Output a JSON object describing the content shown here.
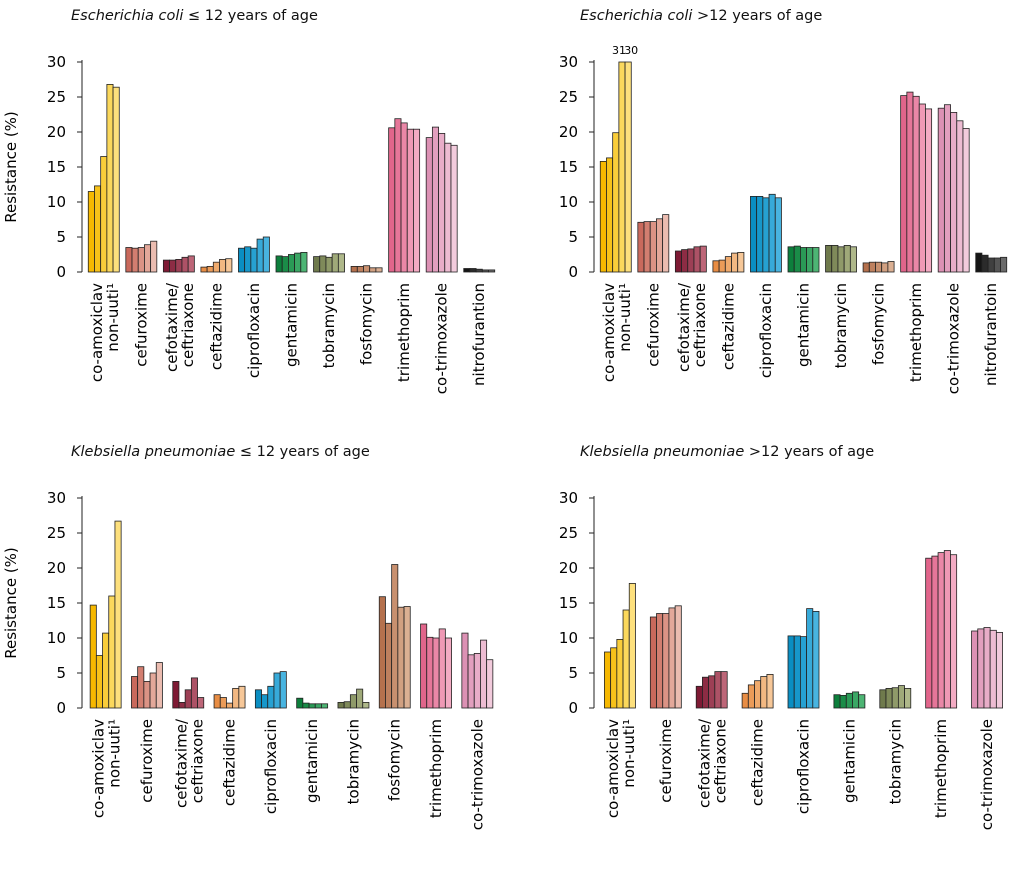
{
  "colors": {
    "co-amoxiclav": [
      "#f6b800",
      "#f7c21a",
      "#f9cd3a",
      "#fbd85c",
      "#fde07d"
    ],
    "cefuroxime": [
      "#c9695c",
      "#d27e70",
      "#db9385",
      "#e3a89a",
      "#ebbcb0"
    ],
    "cefotaxime/ceftriaxone": [
      "#7e1a34",
      "#8d2c44",
      "#9d3f55",
      "#ad5266",
      "#bd6678"
    ],
    "ceftazidime": [
      "#e88d44",
      "#eb9b58",
      "#efaa6d",
      "#f2b882",
      "#f6c798"
    ],
    "ciprofloxacin": [
      "#0a8ec2",
      "#1797ca",
      "#26a1d2",
      "#37aad9",
      "#48b4e0"
    ],
    "gentamicin": [
      "#0d7f3c",
      "#1a8c48",
      "#2a9a56",
      "#3ba765",
      "#4db574"
    ],
    "tobramycin": [
      "#6f7a4c",
      "#7f8a5a",
      "#8f9a69",
      "#9fa979",
      "#afb88a"
    ],
    "fosfomycin": [
      "#b5714d",
      "#be805e",
      "#c8906f",
      "#d1a081",
      "#dbb093"
    ],
    "trimethoprim": [
      "#e1658b",
      "#e67699",
      "#ea87a7",
      "#ef99b5",
      "#f3abc3"
    ],
    "co-trimoxazole": [
      "#dc91b4",
      "#e29fbe",
      "#e8adc8",
      "#edbcd2",
      "#f2cbdc"
    ],
    "nitrofurantoin": [
      "#151515",
      "#2b2b2b",
      "#404040",
      "#555555",
      "#6a6a6a"
    ]
  },
  "charts": [
    {
      "organism": "Escherichia coli",
      "age": " ≤ 12 years of age",
      "show_ylabel": true,
      "ylabel": "Resistance (%)",
      "ticks": [
        "30",
        "25",
        "20",
        "15",
        "10",
        "5",
        "0"
      ],
      "categories": [
        "co-amoxiclav non-uuti¹",
        "cefuroxime",
        "cefotaxime/ ceftriaxone",
        "ceftazidime",
        "ciprofloxacin",
        "gentamicin",
        "tobramycin",
        "fosfomycin",
        "trimethoprim",
        "co-trimoxazole",
        "nitrofurantion"
      ],
      "value_labels": [
        "",
        "",
        "",
        "",
        ""
      ]
    },
    {
      "organism": "Escherichia coli",
      "age": " >12 years of age",
      "show_ylabel": false,
      "ylabel": "",
      "ticks": [
        "30",
        "25",
        "20",
        "15",
        "10",
        "5",
        "0"
      ],
      "categories": [
        "co-amoxiclav non-uuti¹",
        "cefuroxime",
        "cefotaxime/ ceftriaxone",
        "ceftazidime",
        "ciprofloxacin",
        "gentamicin",
        "tobramycin",
        "fosfomycin",
        "trimethoprim",
        "co-trimoxazole",
        "nitrofurantoin"
      ],
      "value_labels": [
        "",
        "",
        "",
        "31",
        "30"
      ]
    },
    {
      "organism": "Klebsiella pneumoniae",
      "age": " ≤ 12 years of age",
      "show_ylabel": true,
      "ylabel": "Resistance (%)",
      "ticks": [
        "30",
        "25",
        "20",
        "15",
        "10",
        "5",
        "0"
      ],
      "categories": [
        "co-amoxiclav non-uuti¹",
        "cefuroxime",
        "cefotaxime/ ceftriaxone",
        "ceftazidime",
        "ciprofloxacin",
        "gentamicin",
        "tobramycin",
        "fosfomycin",
        "trimethoprim",
        "co-trimoxazole"
      ],
      "value_labels": [
        "",
        "",
        "",
        "",
        ""
      ]
    },
    {
      "organism": "Klebsiella pneumoniae",
      "age": " >12 years of age",
      "show_ylabel": false,
      "ylabel": "",
      "ticks": [
        "30",
        "25",
        "20",
        "15",
        "10",
        "5",
        "0"
      ],
      "categories": [
        "co-amoxiclav non-uuti¹",
        "cefuroxime",
        "cefotaxime/ ceftriaxone",
        "ceftazidime",
        "ciprofloxacin",
        "gentamicin",
        "tobramycin",
        "trimethoprim",
        "co-trimoxazole"
      ],
      "value_labels": [
        "",
        "",
        "",
        "",
        ""
      ]
    }
  ],
  "chart_data": [
    {
      "type": "bar",
      "title": "Escherichia coli ≤ 12 years of age",
      "ylabel": "Resistance (%)",
      "ylim": [
        0,
        30
      ],
      "categories": [
        "co-amoxiclav non-uuti¹",
        "cefuroxime",
        "cefotaxime/ ceftriaxone",
        "ceftazidime",
        "ciprofloxacin",
        "gentamicin",
        "tobramycin",
        "fosfomycin",
        "trimethoprim",
        "co-trimoxazole",
        "nitrofurantion"
      ],
      "series_per_category": 5,
      "values": [
        [
          11.5,
          12.3,
          16.5,
          26.8,
          26.4
        ],
        [
          3.5,
          3.4,
          3.5,
          3.9,
          4.4
        ],
        [
          1.7,
          1.7,
          1.8,
          2.1,
          2.3
        ],
        [
          0.7,
          0.8,
          1.4,
          1.8,
          1.9
        ],
        [
          3.4,
          3.6,
          3.4,
          4.7,
          5.0
        ],
        [
          2.3,
          2.2,
          2.5,
          2.7,
          2.8
        ],
        [
          2.2,
          2.3,
          2.1,
          2.6,
          2.6
        ],
        [
          0.8,
          0.8,
          0.9,
          0.6,
          0.6
        ],
        [
          20.6,
          21.9,
          21.3,
          20.4,
          20.4
        ],
        [
          19.2,
          20.7,
          19.8,
          18.4,
          18.1
        ],
        [
          0.5,
          0.5,
          0.4,
          0.3,
          0.3
        ]
      ]
    },
    {
      "type": "bar",
      "title": "Escherichia coli >12 years of age",
      "ylabel": "Resistance (%)",
      "ylim": [
        0,
        30
      ],
      "categories": [
        "co-amoxiclav non-uuti¹",
        "cefuroxime",
        "cefotaxime/ ceftriaxone",
        "ceftazidime",
        "ciprofloxacin",
        "gentamicin",
        "tobramycin",
        "fosfomycin",
        "trimethoprim",
        "co-trimoxazole",
        "nitrofurantoin"
      ],
      "series_per_category": 5,
      "values": [
        [
          15.8,
          16.3,
          19.9,
          31,
          30
        ],
        [
          7.1,
          7.2,
          7.2,
          7.6,
          8.2
        ],
        [
          3.0,
          3.2,
          3.3,
          3.6,
          3.7
        ],
        [
          1.6,
          1.7,
          2.2,
          2.7,
          2.8
        ],
        [
          10.8,
          10.8,
          10.6,
          11.1,
          10.6
        ],
        [
          3.6,
          3.7,
          3.5,
          3.5,
          3.5
        ],
        [
          3.8,
          3.8,
          3.6,
          3.8,
          3.6
        ],
        [
          1.3,
          1.4,
          1.4,
          1.3,
          1.5
        ],
        [
          25.2,
          25.7,
          25.1,
          24.0,
          23.3
        ],
        [
          23.4,
          23.9,
          22.8,
          21.6,
          20.5
        ],
        [
          2.7,
          2.4,
          2.0,
          2.0,
          2.1
        ]
      ]
    },
    {
      "type": "bar",
      "title": "Klebsiella pneumoniae ≤ 12 years of age",
      "ylabel": "Resistance (%)",
      "ylim": [
        0,
        30
      ],
      "categories": [
        "co-amoxiclav non-uuti¹",
        "cefuroxime",
        "cefotaxime/ ceftriaxone",
        "ceftazidime",
        "ciprofloxacin",
        "gentamicin",
        "tobramycin",
        "fosfomycin",
        "trimethoprim",
        "co-trimoxazole"
      ],
      "series_per_category": 5,
      "values": [
        [
          14.7,
          7.5,
          10.7,
          16.0,
          26.7
        ],
        [
          4.5,
          5.9,
          3.8,
          5.0,
          6.5
        ],
        [
          3.8,
          0.8,
          2.6,
          4.3,
          1.5
        ],
        [
          1.9,
          1.5,
          0.7,
          2.8,
          3.1
        ],
        [
          2.6,
          1.9,
          3.1,
          5.0,
          5.2
        ],
        [
          1.4,
          0.7,
          0.6,
          0.6,
          0.6
        ],
        [
          0.8,
          0.9,
          1.9,
          2.7,
          0.8
        ],
        [
          15.9,
          12.1,
          20.5,
          14.4,
          14.5
        ],
        [
          12.0,
          10.1,
          10.0,
          11.3,
          10.0
        ],
        [
          10.7,
          7.6,
          7.8,
          9.7,
          6.9
        ]
      ]
    },
    {
      "type": "bar",
      "title": "Klebsiella pneumoniae >12 years of age",
      "ylabel": "Resistance (%)",
      "ylim": [
        0,
        30
      ],
      "categories": [
        "co-amoxiclav non-uuti¹",
        "cefuroxime",
        "cefotaxime/ ceftriaxone",
        "ceftazidime",
        "ciprofloxacin",
        "gentamicin",
        "tobramycin",
        "trimethoprim",
        "co-trimoxazole"
      ],
      "series_per_category": 5,
      "values": [
        [
          8.0,
          8.6,
          9.8,
          14.0,
          17.8
        ],
        [
          13.0,
          13.5,
          13.5,
          14.3,
          14.6
        ],
        [
          3.1,
          4.4,
          4.6,
          5.2,
          5.2
        ],
        [
          2.1,
          3.3,
          3.9,
          4.5,
          4.8
        ],
        [
          10.3,
          10.3,
          10.2,
          14.2,
          13.8
        ],
        [
          1.9,
          1.8,
          2.1,
          2.3,
          1.9
        ],
        [
          2.6,
          2.8,
          2.9,
          3.2,
          2.8
        ],
        [
          21.4,
          21.7,
          22.2,
          22.5,
          21.9
        ],
        [
          11.0,
          11.3,
          11.5,
          11.1,
          10.8
        ]
      ]
    }
  ]
}
